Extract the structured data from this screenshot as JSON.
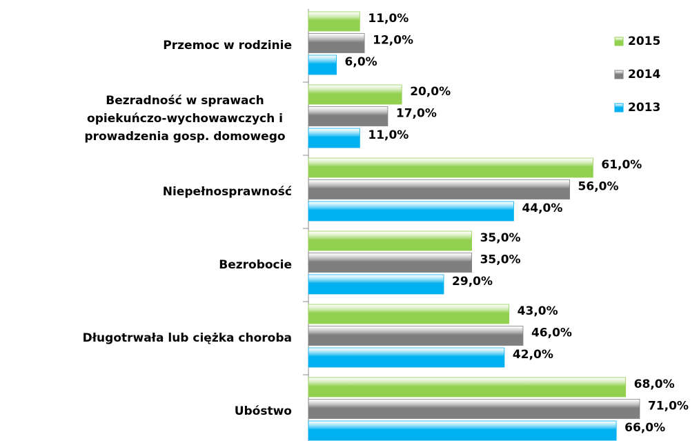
{
  "chart_data": {
    "type": "bar",
    "orientation": "horizontal",
    "categories": [
      "Przemoc w rodzinie",
      "Bezradność w sprawach opiekuńczo-wychowawczych i prowadzenia gosp. domowego",
      "Niepełnosprawność",
      "Bezrobocie",
      "Długotrwała lub ciężka choroba",
      "Ubóstwo"
    ],
    "series": [
      {
        "name": "2015",
        "color": "#92d050",
        "values": [
          11,
          20,
          61,
          35,
          43,
          68
        ],
        "value_labels": [
          "11,0%",
          "20,0%",
          "61,0%",
          "35,0%",
          "43,0%",
          "68,0%"
        ]
      },
      {
        "name": "2014",
        "color": "#7f7f7f",
        "values": [
          12,
          17,
          56,
          35,
          46,
          71
        ],
        "value_labels": [
          "12,0%",
          "17,0%",
          "56,0%",
          "35,0%",
          "46,0%",
          "71,0%"
        ]
      },
      {
        "name": "2013",
        "color": "#00b0f0",
        "values": [
          6,
          11,
          44,
          29,
          42,
          66
        ],
        "value_labels": [
          "6,0%",
          "11,0%",
          "44,0%",
          "29,0%",
          "42,0%",
          "66,0%"
        ]
      }
    ],
    "xlim": [
      0,
      75
    ],
    "legend": "right"
  }
}
